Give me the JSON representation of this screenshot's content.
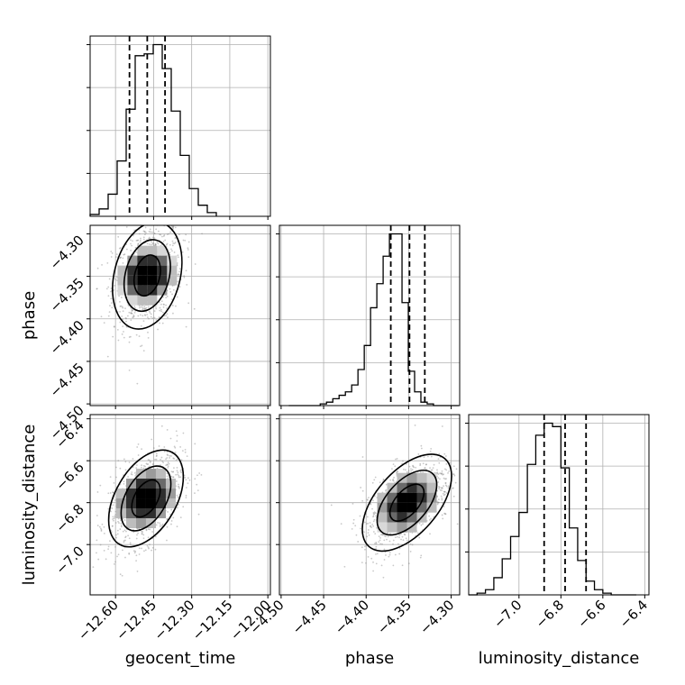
{
  "chart_data": {
    "type": "corner",
    "grid": true,
    "parameters": [
      {
        "label": "geocent_time",
        "ticks": [
          "−12.60",
          "−12.45",
          "−12.30",
          "−12.15",
          "−12.00"
        ],
        "tick_values": [
          -12.6,
          -12.45,
          -12.3,
          -12.15,
          -12.0
        ],
        "range": [
          -12.7,
          -11.99
        ]
      },
      {
        "label": "phase",
        "ticks": [
          "−4.50",
          "−4.45",
          "−4.40",
          "−4.35",
          "−4.30"
        ],
        "tick_values": [
          -4.5,
          -4.45,
          -4.4,
          -4.35,
          -4.3
        ],
        "range": [
          -4.502,
          -4.29
        ]
      },
      {
        "label": "luminosity_distance",
        "ticks": [
          "−7.0",
          "−6.8",
          "−6.6",
          "−6.4"
        ],
        "tick_values": [
          -7.0,
          -6.8,
          -6.6,
          -6.4
        ],
        "range": [
          -7.24,
          -6.38
        ]
      }
    ],
    "y_ticks": {
      "phase": [
        "−4.50",
        "−4.45",
        "−4.40",
        "−4.35",
        "−4.30"
      ],
      "luminosity_distance": [
        "−7.0",
        "−6.8",
        "−6.6",
        "−6.4"
      ]
    },
    "histograms": [
      {
        "param": "geocent_time",
        "bin_edges": [
          -12.7,
          -12.6645,
          -12.629,
          -12.5935,
          -12.558,
          -12.5225,
          -12.487,
          -12.4515,
          -12.416,
          -12.3805,
          -12.345,
          -12.3095,
          -12.274,
          -12.2385,
          -12.203
        ],
        "counts": [
          0.01,
          0.04,
          0.12,
          0.3,
          0.58,
          0.87,
          0.88,
          0.93,
          0.8,
          0.57,
          0.33,
          0.15,
          0.06,
          0.02
        ],
        "quantiles": [
          -12.545,
          -12.475,
          -12.405
        ]
      },
      {
        "param": "phase",
        "bin_edges": [
          -4.491,
          -4.4836,
          -4.4762,
          -4.4688,
          -4.4614,
          -4.454,
          -4.4466,
          -4.4392,
          -4.4318,
          -4.4244,
          -4.417,
          -4.4096,
          -4.4022,
          -4.3948,
          -4.3874,
          -4.38,
          -4.3726,
          -4.3652,
          -4.3578,
          -4.3504,
          -4.343,
          -4.3356,
          -4.3282,
          -4.3208,
          -4.3134,
          -4.306,
          -4.2986,
          -4.2912
        ],
        "counts": [
          0,
          0,
          0,
          0,
          0,
          0.01,
          0.02,
          0.04,
          0.06,
          0.08,
          0.12,
          0.21,
          0.35,
          0.57,
          0.71,
          0.87,
          1.0,
          1.0,
          0.6,
          0.2,
          0.08,
          0.02,
          0.01,
          0,
          0,
          0,
          0
        ],
        "quantiles": [
          -4.371,
          -4.349,
          -4.331
        ]
      },
      {
        "param": "luminosity_distance",
        "bin_edges": [
          -7.24,
          -7.2,
          -7.16,
          -7.12,
          -7.08,
          -7.04,
          -7.0,
          -6.96,
          -6.92,
          -6.88,
          -6.84,
          -6.8,
          -6.76,
          -6.72,
          -6.68,
          -6.64,
          -6.6,
          -6.56,
          -6.52,
          -6.48,
          -6.44
        ],
        "counts": [
          0,
          0.01,
          0.03,
          0.1,
          0.21,
          0.34,
          0.48,
          0.76,
          0.93,
          1.0,
          0.98,
          0.74,
          0.39,
          0.2,
          0.08,
          0.03,
          0.01,
          0,
          0,
          0
        ],
        "quantiles": [
          -6.88,
          -6.78,
          -6.68
        ]
      }
    ],
    "pairs": [
      {
        "x": "geocent_time",
        "y": "phase",
        "mean": [
          -12.475,
          -4.349
        ],
        "sd": [
          0.065,
          0.03
        ],
        "corr": 0.25
      },
      {
        "x": "geocent_time",
        "y": "luminosity_distance",
        "mean": [
          -12.48,
          -6.78
        ],
        "sd": [
          0.07,
          0.11
        ],
        "corr": 0.45
      },
      {
        "x": "phase",
        "y": "luminosity_distance",
        "mean": [
          -4.352,
          -6.8
        ],
        "sd": [
          0.025,
          0.11
        ],
        "corr": 0.55
      }
    ]
  }
}
